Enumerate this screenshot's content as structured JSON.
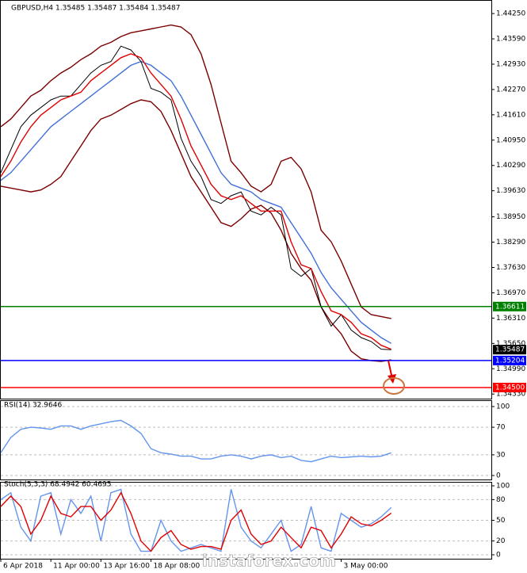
{
  "chart_data": [
    {
      "type": "line",
      "title": "GBPUSD,H4 1.35485 1.35487 1.35484 1.35487",
      "xlim": [
        0,
        49
      ],
      "ylim": [
        1.3421,
        1.445
      ],
      "yticks": [
        {
          "value": 1.4425,
          "label": "1.44250"
        },
        {
          "value": 1.4359,
          "label": "1.43590"
        },
        {
          "value": 1.4293,
          "label": "1.42930"
        },
        {
          "value": 1.4227,
          "label": "1.42270"
        },
        {
          "value": 1.4161,
          "label": "1.41610"
        },
        {
          "value": 1.4095,
          "label": "1.40950"
        },
        {
          "value": 1.4029,
          "label": "1.40290"
        },
        {
          "value": 1.3963,
          "label": "1.39630"
        },
        {
          "value": 1.3895,
          "label": "1.38950"
        },
        {
          "value": 1.3829,
          "label": "1.38290"
        },
        {
          "value": 1.3763,
          "label": "1.37630"
        },
        {
          "value": 1.3697,
          "label": "1.36970"
        },
        {
          "value": 1.3631,
          "label": "1.36310"
        },
        {
          "value": 1.3565,
          "label": "1.35650"
        },
        {
          "value": 1.3499,
          "label": "1.34990"
        },
        {
          "value": 1.3433,
          "label": "1.34330"
        }
      ],
      "xticks": [
        {
          "value": 0,
          "label": "6 Apr 2018"
        },
        {
          "value": 5,
          "label": "11 Apr 00:00"
        },
        {
          "value": 10,
          "label": "13 Apr 16:00"
        },
        {
          "value": 15,
          "label": "18 Apr 08:00"
        },
        {
          "value": 34,
          "label": "3 May 00:00"
        }
      ],
      "series": [
        {
          "color": "#7a0000",
          "values": [
            1.413,
            1.415,
            1.418,
            1.421,
            1.4225,
            1.425,
            1.427,
            1.4285,
            1.4305,
            1.432,
            1.434,
            1.435,
            1.4365,
            1.4375,
            1.438,
            1.4385,
            1.439,
            1.4395,
            1.439,
            1.437,
            1.432,
            1.424,
            1.414,
            1.404,
            1.401,
            1.3975,
            1.396,
            1.398,
            1.404,
            1.405,
            1.402,
            1.396,
            1.386,
            1.383,
            1.378,
            1.372,
            1.366,
            1.364,
            1.3635,
            1.363
          ]
        },
        {
          "color": "#7a0000",
          "values": [
            1.3975,
            1.397,
            1.3965,
            1.396,
            1.3965,
            1.398,
            1.4,
            1.404,
            1.408,
            1.412,
            1.415,
            1.416,
            1.4175,
            1.419,
            1.42,
            1.4195,
            1.417,
            1.412,
            1.406,
            1.4,
            1.396,
            1.392,
            1.388,
            1.387,
            1.389,
            1.3915,
            1.3925,
            1.3905,
            1.386,
            1.38,
            1.376,
            1.373,
            1.366,
            1.362,
            1.359,
            1.3545,
            1.3525,
            1.352,
            1.3518,
            1.3522
          ]
        },
        {
          "color": "#3f6fd8",
          "values": [
            1.399,
            1.401,
            1.404,
            1.407,
            1.41,
            1.413,
            1.415,
            1.417,
            1.419,
            1.421,
            1.423,
            1.425,
            1.427,
            1.429,
            1.43,
            1.429,
            1.427,
            1.425,
            1.421,
            1.416,
            1.411,
            1.406,
            1.401,
            1.398,
            1.397,
            1.396,
            1.394,
            1.393,
            1.392,
            1.388,
            1.384,
            1.38,
            1.375,
            1.371,
            1.368,
            1.365,
            1.362,
            1.36,
            1.358,
            1.3565
          ]
        },
        {
          "color": "#000000",
          "values": [
            1.401,
            1.407,
            1.413,
            1.416,
            1.418,
            1.42,
            1.421,
            1.421,
            1.424,
            1.427,
            1.429,
            1.43,
            1.434,
            1.433,
            1.43,
            1.423,
            1.422,
            1.42,
            1.41,
            1.404,
            1.4,
            1.394,
            1.393,
            1.395,
            1.396,
            1.391,
            1.39,
            1.392,
            1.39,
            1.376,
            1.374,
            1.376,
            1.366,
            1.361,
            1.364,
            1.36,
            1.358,
            1.357,
            1.355,
            1.35487
          ]
        },
        {
          "color": "#e00000",
          "values": [
            1.4,
            1.404,
            1.409,
            1.413,
            1.416,
            1.418,
            1.42,
            1.421,
            1.422,
            1.425,
            1.427,
            1.429,
            1.431,
            1.432,
            1.431,
            1.427,
            1.424,
            1.421,
            1.415,
            1.408,
            1.403,
            1.398,
            1.395,
            1.394,
            1.395,
            1.393,
            1.391,
            1.391,
            1.391,
            1.383,
            1.377,
            1.376,
            1.37,
            1.365,
            1.364,
            1.362,
            1.359,
            1.358,
            1.356,
            1.355
          ]
        }
      ],
      "levels": [
        {
          "value": 1.36611,
          "label": "1.36611",
          "color": "#008000",
          "line": true
        },
        {
          "value": 1.35487,
          "label": "1.35487",
          "color": "#000000",
          "line": false
        },
        {
          "value": 1.35204,
          "label": "1.35204",
          "color": "#0000ff",
          "line": true
        },
        {
          "value": 1.345,
          "label": "1.34500",
          "color": "#ff0000",
          "line": true
        }
      ]
    },
    {
      "type": "line",
      "title": "RSI(14) 32.9646",
      "xlim": [
        0,
        49
      ],
      "ylim": [
        0,
        100
      ],
      "yticks": [
        100,
        70,
        30,
        0
      ],
      "grid": true,
      "series": [
        {
          "color": "#6495ed",
          "values": [
            33,
            55,
            67,
            70,
            69,
            67,
            72,
            72,
            67,
            72,
            75,
            78,
            80,
            72,
            61,
            39,
            33,
            31,
            28,
            28,
            24,
            24,
            28,
            30,
            28,
            24,
            28,
            30,
            26,
            28,
            22,
            20,
            24,
            28,
            26,
            27,
            28,
            27,
            28,
            32.9646
          ]
        }
      ]
    },
    {
      "type": "line",
      "title": "Stoch(5,3,3) 68.4942 60.4695",
      "xlim": [
        0,
        49
      ],
      "ylim": [
        0,
        100
      ],
      "yticks": [
        100,
        80,
        50,
        20,
        0
      ],
      "grid": true,
      "series": [
        {
          "color": "#6495ed",
          "values": [
            80,
            90,
            40,
            20,
            85,
            90,
            30,
            80,
            60,
            85,
            20,
            90,
            95,
            30,
            5,
            5,
            50,
            20,
            5,
            10,
            15,
            10,
            5,
            95,
            40,
            20,
            10,
            30,
            50,
            5,
            15,
            70,
            10,
            5,
            60,
            50,
            40,
            45,
            55,
            68.4942
          ]
        },
        {
          "color": "#e00000",
          "values": [
            70,
            85,
            70,
            30,
            50,
            85,
            60,
            55,
            70,
            70,
            50,
            65,
            90,
            60,
            20,
            5,
            25,
            35,
            15,
            8,
            12,
            12,
            8,
            50,
            65,
            30,
            15,
            20,
            40,
            25,
            10,
            40,
            35,
            10,
            30,
            55,
            45,
            42,
            50,
            60.4695
          ]
        }
      ]
    }
  ],
  "watermark": "instaforex.com"
}
